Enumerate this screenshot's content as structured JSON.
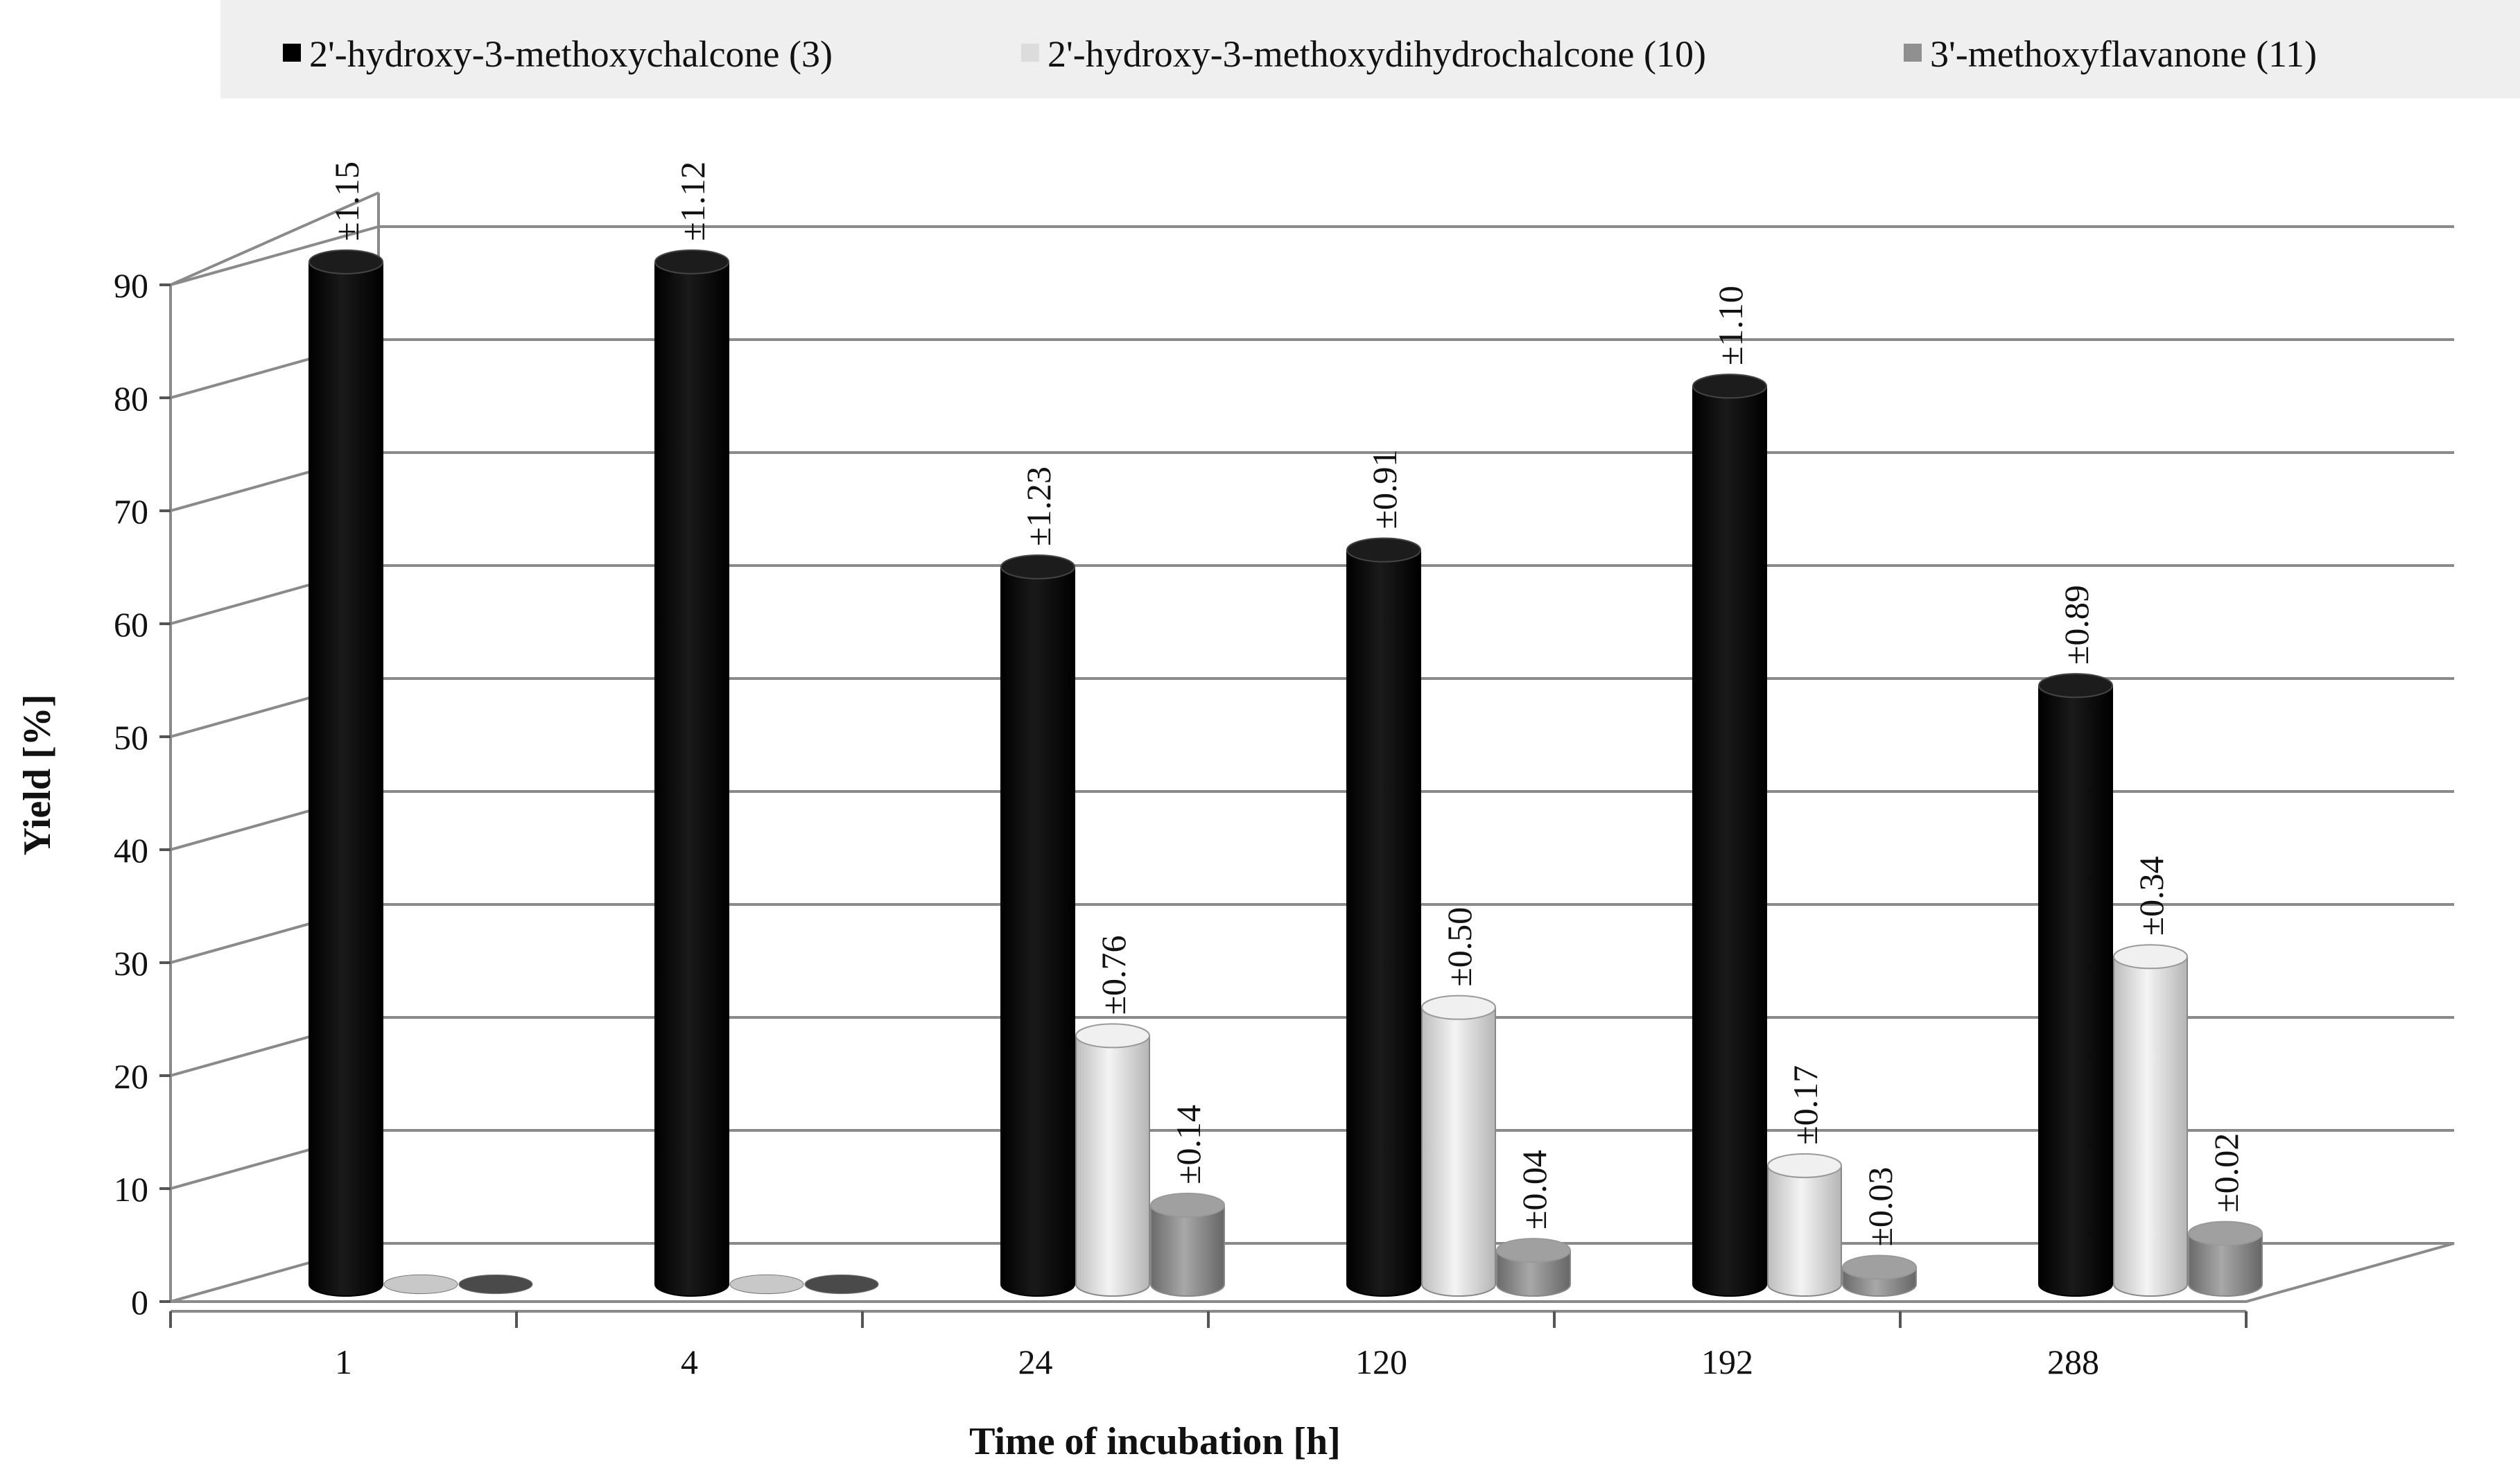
{
  "chart_data": {
    "type": "bar",
    "variant": "3d-cylinder",
    "title": "",
    "xlabel": "Time of incubation [h]",
    "ylabel": "Yield [%]",
    "ylim": [
      0,
      90
    ],
    "yticks": [
      0,
      10,
      20,
      30,
      40,
      50,
      60,
      70,
      80,
      90
    ],
    "grid": true,
    "legend_position": "top",
    "categories": [
      "1",
      "4",
      "24",
      "120",
      "192",
      "288"
    ],
    "series": [
      {
        "name": "2'-hydroxy-3-methoxychalcone (3)",
        "color": "#000000",
        "values": [
          90.5,
          90.5,
          63.5,
          65.0,
          79.5,
          53.0
        ],
        "errors": [
          "±1.15",
          "±1.12",
          "±1.23",
          "±0.91",
          "±1.10",
          "±0.89"
        ]
      },
      {
        "name": "2'-hydroxy-3-methoxydihydrochalcone (10)",
        "color": "#dcdcdc",
        "values": [
          0,
          0,
          22.0,
          24.5,
          10.5,
          29.0
        ],
        "errors": [
          "",
          "",
          "±0.76",
          "±0.50",
          "±0.17",
          "±0.34"
        ]
      },
      {
        "name": "3'-methoxyflavanone (11)",
        "color": "#909090",
        "values": [
          0,
          0,
          7.0,
          3.0,
          1.5,
          4.5
        ],
        "errors": [
          "",
          "",
          "±0.14",
          "±0.04",
          "±0.03",
          "±0.02"
        ]
      }
    ]
  }
}
